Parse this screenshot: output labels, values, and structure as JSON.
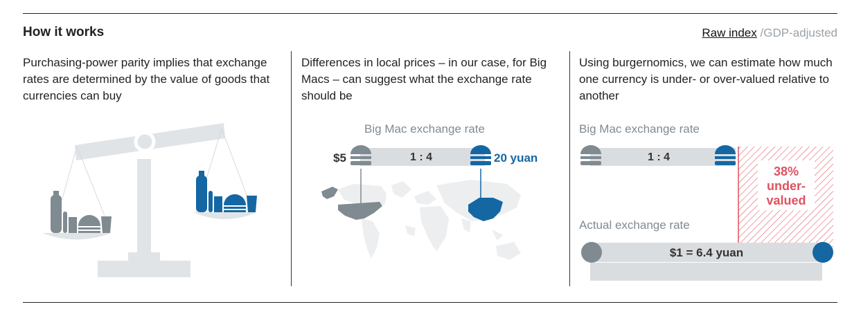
{
  "header": {
    "title": "How it works",
    "toggle_active": "Raw index",
    "toggle_separator": " /",
    "toggle_inactive": "GDP-adjusted"
  },
  "panels": [
    {
      "description": "Purchasing-power parity implies that exchange rates are determined by the value of goods that currencies can buy"
    },
    {
      "description": "Differences in local prices – in our case, for Big Macs – can suggest what the exchange rate should be",
      "heading": "Big Mac exchange rate",
      "left_price": "$5",
      "ratio": "1 : 4",
      "right_price": "20 yuan"
    },
    {
      "description": "Using burgernomics, we can estimate how much one currency is under- or over-valued relative to another",
      "heading": "Big Mac exchange rate",
      "ratio": "1 : 4",
      "valuation_line1": "38%",
      "valuation_line2": "under-",
      "valuation_line3": "valued",
      "actual_heading": "Actual exchange rate",
      "actual_rate": "$1 = 6.4 yuan"
    }
  ],
  "colors": {
    "grey_icon": "#7f8a91",
    "light_grey": "#dadde0",
    "blue": "#1467a3",
    "red": "#e0515f"
  }
}
